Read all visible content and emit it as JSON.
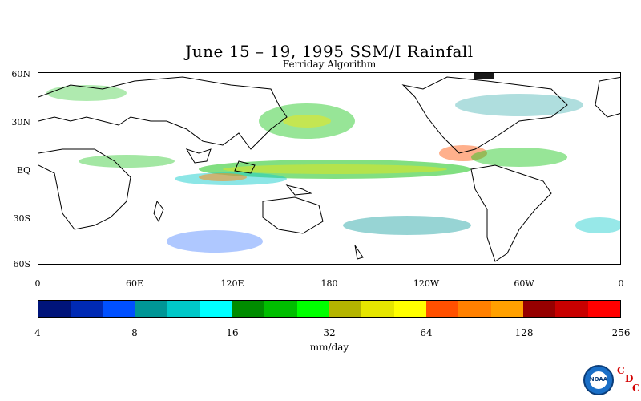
{
  "title": "June 15 – 19, 1995 SSM/I Rainfall",
  "subtitle": "Ferriday Algorithm",
  "lat_labels": [
    "60N",
    "30N",
    "EQ",
    "30S",
    "60S"
  ],
  "lon_labels": [
    "0",
    "60E",
    "120E",
    "180",
    "120W",
    "60W",
    "0"
  ],
  "colorbar": {
    "colors": [
      "#00147a",
      "#002ab4",
      "#0050ff",
      "#009696",
      "#00c8c8",
      "#00ffff",
      "#008c00",
      "#00be00",
      "#00ff00",
      "#b4b400",
      "#e6e600",
      "#ffff00",
      "#ff5000",
      "#ff8000",
      "#ffa000",
      "#960000",
      "#c80000",
      "#ff0000"
    ],
    "tick_labels": [
      "4",
      "8",
      "16",
      "32",
      "64",
      "128",
      "256"
    ],
    "units": "mm/day"
  },
  "logo_text": "NOAA",
  "cdc_letters": [
    "C",
    "D",
    "C"
  ]
}
